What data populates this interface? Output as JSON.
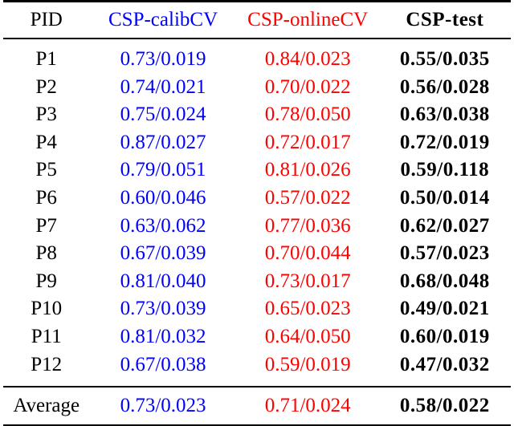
{
  "table": {
    "columns": [
      {
        "label": "PID"
      },
      {
        "label": "CSP-calibCV"
      },
      {
        "label": "CSP-onlineCV"
      },
      {
        "label": "CSP-test"
      }
    ],
    "rows": [
      [
        "P1",
        "0.73/0.019",
        "0.84/0.023",
        "0.55/0.035"
      ],
      [
        "P2",
        "0.74/0.021",
        "0.70/0.022",
        "0.56/0.028"
      ],
      [
        "P3",
        "0.75/0.024",
        "0.78/0.050",
        "0.63/0.038"
      ],
      [
        "P4",
        "0.87/0.027",
        "0.72/0.017",
        "0.72/0.019"
      ],
      [
        "P5",
        "0.79/0.051",
        "0.81/0.026",
        "0.59/0.118"
      ],
      [
        "P6",
        "0.60/0.046",
        "0.57/0.022",
        "0.50/0.014"
      ],
      [
        "P7",
        "0.63/0.062",
        "0.77/0.036",
        "0.62/0.027"
      ],
      [
        "P8",
        "0.67/0.039",
        "0.70/0.044",
        "0.57/0.023"
      ],
      [
        "P9",
        "0.81/0.040",
        "0.73/0.017",
        "0.68/0.048"
      ],
      [
        "P10",
        "0.73/0.039",
        "0.65/0.023",
        "0.49/0.021"
      ],
      [
        "P11",
        "0.81/0.032",
        "0.64/0.050",
        "0.60/0.019"
      ],
      [
        "P12",
        "0.67/0.038",
        "0.59/0.019",
        "0.47/0.032"
      ]
    ],
    "average": [
      "Average",
      "0.73/0.023",
      "0.71/0.024",
      "0.58/0.022"
    ]
  },
  "colors": {
    "calibcv_column": "#0000ff",
    "onlinecv_column": "#ff0000",
    "test_column": "#000000",
    "rules": "#000000",
    "background": "#ffffff"
  }
}
